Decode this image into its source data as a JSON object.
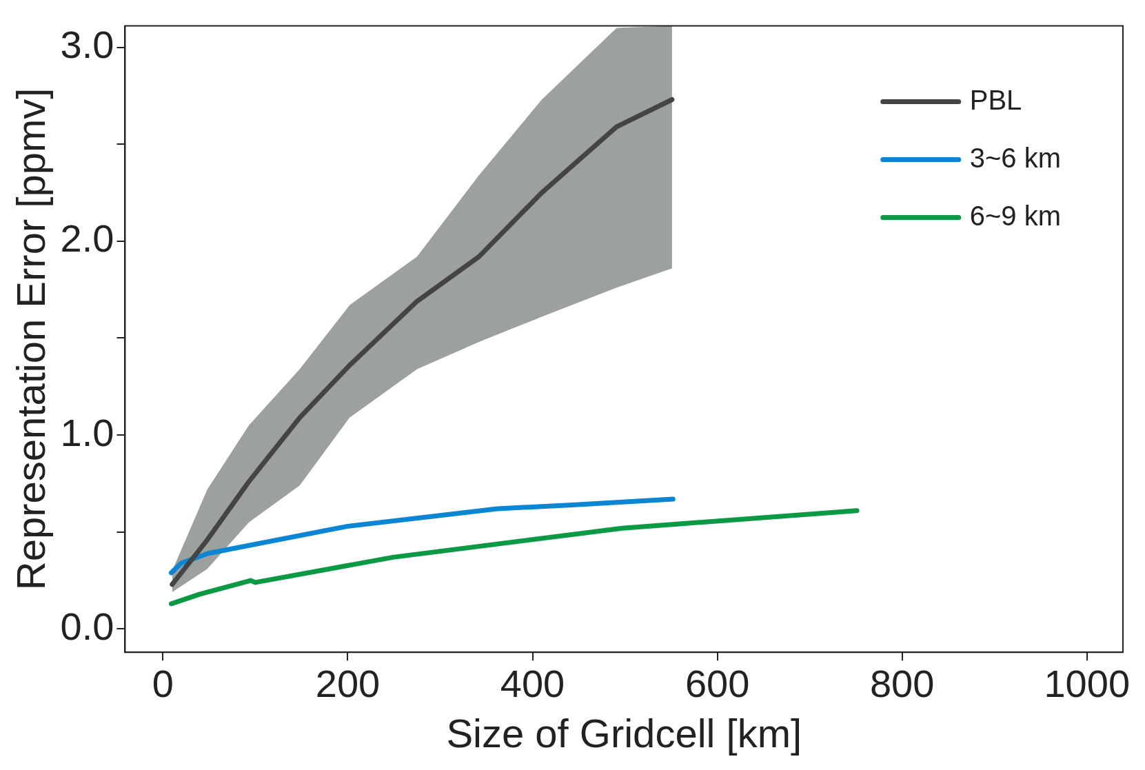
{
  "chart_data": {
    "type": "line",
    "xlabel": "Size of Gridcell [km]",
    "ylabel": "Representation Error [ppmv]",
    "xlim": [
      -41,
      1039
    ],
    "xticks": [
      0,
      200,
      400,
      600,
      800,
      1000
    ],
    "ylim": [
      -0.12,
      3.11
    ],
    "yticks": [
      {
        "value": 0,
        "label": "0.0"
      },
      {
        "value": 0.5,
        "label": null
      },
      {
        "value": 1,
        "label": "1.0"
      },
      {
        "value": 1.5,
        "label": null
      },
      {
        "value": 2,
        "label": "2.0"
      },
      {
        "value": 2.5,
        "label": null
      },
      {
        "value": 3,
        "label": "3.0"
      }
    ],
    "legend": "top right",
    "grid": false,
    "marker": "none",
    "line_style": "solid",
    "series": [
      {
        "name": "PBL",
        "color": "#444444",
        "x": [
          10,
          48,
          93,
          148,
          202,
          275,
          342,
          410,
          491,
          551
        ],
        "values": [
          0.23,
          0.46,
          0.76,
          1.09,
          1.36,
          1.69,
          1.92,
          2.25,
          2.59,
          2.73
        ],
        "lower": [
          0.19,
          0.31,
          0.55,
          0.74,
          1.09,
          1.34,
          1.48,
          1.61,
          1.76,
          1.86
        ],
        "upper": [
          0.3,
          0.72,
          1.05,
          1.34,
          1.67,
          1.92,
          2.34,
          2.73,
          3.1,
          3.11
        ]
      },
      {
        "name": "3~6 km",
        "color": "#0a86d4",
        "x": [
          9,
          20,
          49,
          200,
          362,
          443,
          552
        ],
        "values": [
          0.29,
          0.34,
          0.39,
          0.53,
          0.62,
          0.64,
          0.67
        ]
      },
      {
        "name": "6~9 km",
        "color": "#0a9a44",
        "x": [
          9,
          40,
          95,
          100,
          249,
          497,
          751
        ],
        "values": [
          0.13,
          0.18,
          0.25,
          0.24,
          0.37,
          0.52,
          0.61
        ]
      }
    ]
  }
}
